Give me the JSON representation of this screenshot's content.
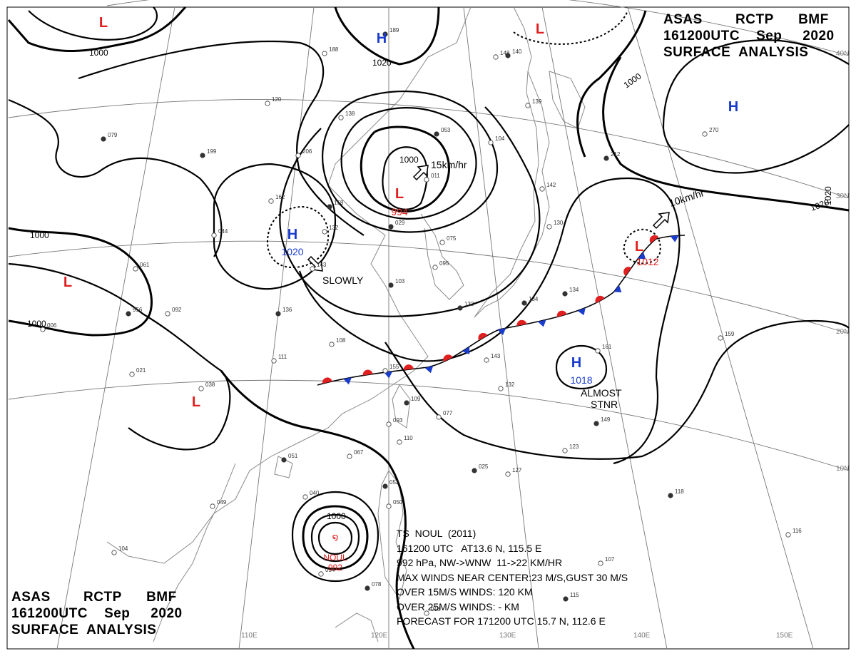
{
  "header_top_right": {
    "line1": "ASAS        RCTP      BMF",
    "line2": "161200UTC    Sep     2020",
    "line3": "SURFACE  ANALYSIS"
  },
  "header_bottom_left": {
    "line1": "ASAS        RCTP      BMF",
    "line2": "161200UTC    Sep     2020",
    "line3": "SURFACE  ANALYSIS"
  },
  "pressure_centers": [
    {
      "symbol": "H",
      "value": "",
      "color": "#1a3ccc"
    },
    {
      "symbol": "H",
      "value": "1020",
      "color": "#1a3ccc"
    },
    {
      "symbol": "L",
      "value": "994",
      "color": "#e02020"
    },
    {
      "symbol": "L",
      "value": "",
      "color": "#e02020"
    },
    {
      "symbol": "H",
      "value": "",
      "color": "#1a3ccc"
    },
    {
      "symbol": "L",
      "value": "1012",
      "color": "#e02020"
    },
    {
      "symbol": "H",
      "value": "1018",
      "color": "#1a3ccc"
    },
    {
      "symbol": "L",
      "value": "",
      "color": "#e02020"
    },
    {
      "symbol": "L",
      "value": "",
      "color": "#e02020"
    },
    {
      "symbol": "L",
      "value": "",
      "color": "#e02020"
    }
  ],
  "typhoon": {
    "name": "NOUL",
    "pressure": "992",
    "color": "#e02020"
  },
  "isobar_labels": [
    "1000",
    "1020",
    "1000",
    "1020",
    "1020",
    "1000",
    "1000",
    "1000"
  ],
  "motion_labels": [
    "15km/hr",
    "10km/hr",
    "SLOWLY",
    "ALMOST",
    "STNR"
  ],
  "lat_labels": [
    "40N",
    "30N",
    "20N",
    "10N"
  ],
  "lon_labels": [
    "110E",
    "120E",
    "130E",
    "140E",
    "150E"
  ],
  "storm_info": {
    "line1": "TS  NOUL  (2011)",
    "line2": "161200 UTC   AT13.6 N, 115.5 E",
    "line3": "992 hPa, NW->WNW  11->22 KM/HR",
    "line4": "MAX WINDS NEAR CENTER:23 M/S,GUST 30 M/S",
    "line5": "OVER 15M/S WINDS: 120 KM",
    "line6": "OVER 25M/S WINDS: - KM",
    "line7": "FORECAST FOR 171200 UTC 15.7 N, 112.6 E"
  },
  "station_numbers": [
    "189",
    "188",
    "138",
    "199",
    "206",
    "162",
    "158",
    "132",
    "143",
    "136",
    "108",
    "111",
    "079",
    "061",
    "092",
    "956",
    "021",
    "038",
    "051",
    "040",
    "067",
    "052",
    "050",
    "054",
    "078",
    "104",
    "049",
    "053",
    "104",
    "011",
    "029",
    "075",
    "095",
    "103",
    "143",
    "132",
    "109",
    "093",
    "110",
    "140",
    "139",
    "148",
    "212",
    "142",
    "130",
    "134",
    "161",
    "159",
    "149",
    "127",
    "123",
    "118",
    "116",
    "107",
    "115",
    "006",
    "270",
    "133",
    "155",
    "077",
    "025",
    "018",
    "044",
    "134",
    "120"
  ],
  "colors": {
    "isobar": "#000000",
    "high": "#1a3ccc",
    "low": "#e02020",
    "front_cold": "#1a3ccc",
    "front_warm": "#e02020",
    "grid": "#777777",
    "coast": "#888888"
  }
}
